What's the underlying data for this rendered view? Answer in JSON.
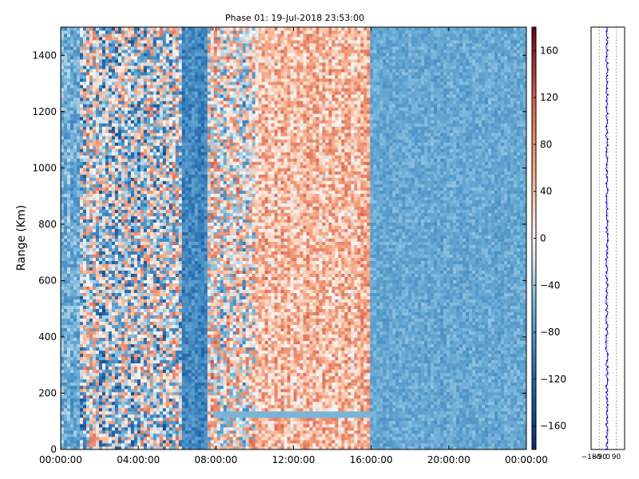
{
  "chart_data": [
    {
      "type": "heatmap",
      "title": "Phase 01: 19-Jul-2018 23:53:00",
      "ylabel": "Range (Km)",
      "xlabel": "",
      "x_ticks": [
        "00:00:00",
        "04:00:00",
        "08:00:00",
        "12:00:00",
        "16:00:00",
        "20:00:00",
        "00:00:00"
      ],
      "x_range_hours": [
        0,
        24
      ],
      "y_ticks": [
        0,
        200,
        400,
        600,
        800,
        1000,
        1200,
        1400
      ],
      "ylim": [
        0,
        1500
      ],
      "colorbar": {
        "ticks": [
          160,
          120,
          80,
          40,
          0,
          -40,
          -80,
          -120,
          -160
        ],
        "tick_labels": [
          "160",
          "120",
          "80",
          "40",
          "0",
          "−40",
          "−80",
          "−120",
          "−160"
        ],
        "range": [
          -180,
          180
        ],
        "colormap": "RdBu_r",
        "colors": {
          "low": "#08306b",
          "mid": "#f7f7f7",
          "high": "#67001f"
        }
      },
      "bands_hours": [
        {
          "from": 0.0,
          "to": 1.0,
          "mean": -60,
          "noise": 30
        },
        {
          "from": 1.0,
          "to": 6.2,
          "mean": -20,
          "noise": 110
        },
        {
          "from": 6.2,
          "to": 7.6,
          "mean": -95,
          "noise": 25
        },
        {
          "from": 7.6,
          "to": 10.0,
          "mean": 10,
          "noise": 95
        },
        {
          "from": 10.0,
          "to": 15.9,
          "mean": 45,
          "noise": 55
        },
        {
          "from": 15.9,
          "to": 24.0,
          "mean": -65,
          "noise": 18
        }
      ],
      "feature_line": {
        "hours": [
          7.9,
          16.2
        ],
        "range_km": 130,
        "value": -55
      }
    },
    {
      "type": "line",
      "x_tick_labels": [
        "−180",
        "−90",
        "0",
        "90"
      ],
      "x_ticks": [
        -180,
        -90,
        0,
        90
      ],
      "xlim": [
        -180,
        180
      ],
      "ylim": [
        0,
        1500
      ],
      "series_color": "#0000cc",
      "profile_mean": -10
    }
  ]
}
